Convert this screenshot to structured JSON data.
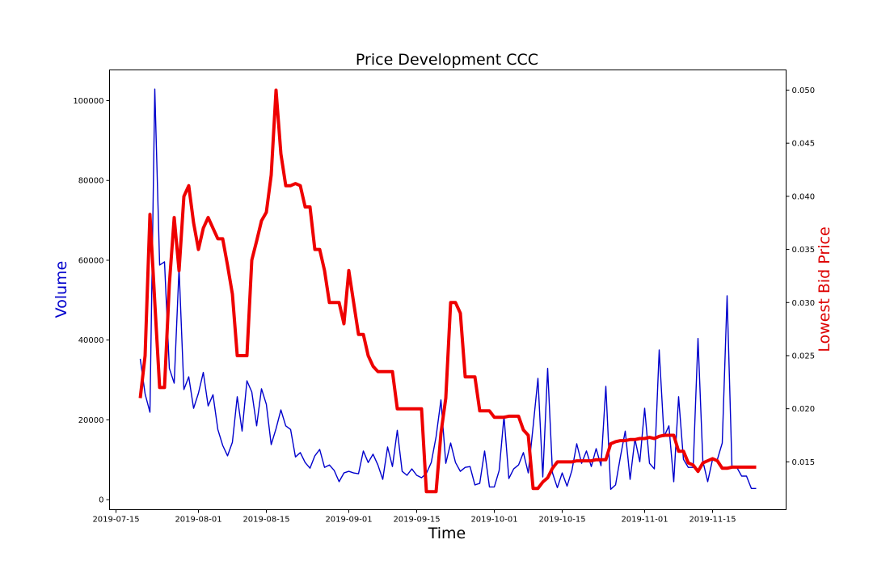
{
  "chart_data": {
    "type": "line",
    "title": "Price Development CCC",
    "xlabel": "Time",
    "ylabel_left": "Volume",
    "ylabel_right": "Lowest Bid Price",
    "x_start": "2019-07-20",
    "x_step_days": 1,
    "xlim": [
      "2019-07-13T16:00",
      "2019-11-30T04:00"
    ],
    "x_ticks": [
      "2019-07-15",
      "2019-08-01",
      "2019-08-15",
      "2019-09-01",
      "2019-09-15",
      "2019-10-01",
      "2019-10-15",
      "2019-11-01",
      "2019-11-15"
    ],
    "ylim_left": [
      -2500,
      107700
    ],
    "y_ticks_left": [
      0,
      20000,
      40000,
      60000,
      80000,
      100000
    ],
    "y_tick_labels_left": [
      "0",
      "20000",
      "40000",
      "60000",
      "80000",
      "100000"
    ],
    "ylim_right": [
      0.0105,
      0.0519
    ],
    "y_ticks_right": [
      0.015,
      0.02,
      0.025,
      0.03,
      0.035,
      0.04,
      0.045,
      0.05
    ],
    "y_tick_labels_right": [
      "0.015",
      "0.020",
      "0.025",
      "0.030",
      "0.035",
      "0.040",
      "0.045",
      "0.050"
    ],
    "grid": false,
    "series": [
      {
        "name": "Volume",
        "axis": "left",
        "color": "#0000cc",
        "values": [
          35300,
          26500,
          21900,
          102900,
          58800,
          59600,
          32900,
          29200,
          58000,
          27600,
          30800,
          22900,
          26700,
          31900,
          23500,
          26300,
          17600,
          13600,
          11000,
          14400,
          25800,
          17200,
          29800,
          27000,
          18500,
          27800,
          23900,
          13800,
          17800,
          22500,
          18500,
          17600,
          10700,
          11800,
          9300,
          7900,
          11000,
          12600,
          8100,
          8700,
          7300,
          4500,
          6700,
          7100,
          6700,
          6500,
          12200,
          9300,
          11400,
          8700,
          5100,
          13200,
          8300,
          17400,
          7100,
          6100,
          7700,
          6100,
          5500,
          6600,
          9300,
          15800,
          25000,
          9100,
          14200,
          9300,
          7100,
          8100,
          8300,
          3700,
          4100,
          12200,
          3200,
          3200,
          7300,
          20900,
          5300,
          7700,
          8700,
          11800,
          6700,
          18300,
          30400,
          5700,
          32900,
          6700,
          3000,
          6700,
          3400,
          7300,
          14000,
          9100,
          12200,
          8300,
          12800,
          8500,
          28400,
          2600,
          3700,
          10700,
          17200,
          5100,
          15200,
          9500,
          22900,
          9100,
          7700,
          37500,
          15800,
          18500,
          4500,
          25800,
          10100,
          8100,
          8100,
          40400,
          9700,
          4500,
          10100,
          10100,
          14200,
          51100,
          8300,
          8100,
          5900,
          5900,
          2800,
          2800
        ]
      },
      {
        "name": "Lowest Bid Price",
        "axis": "right",
        "color": "#ee0000",
        "values": [
          0.021,
          0.025,
          0.0383,
          0.03,
          0.022,
          0.022,
          0.0317,
          0.038,
          0.033,
          0.04,
          0.041,
          0.0375,
          0.035,
          0.037,
          0.038,
          0.037,
          0.036,
          0.036,
          0.0335,
          0.0308,
          0.025,
          0.025,
          0.025,
          0.034,
          0.0358,
          0.0377,
          0.0385,
          0.042,
          0.05,
          0.044,
          0.041,
          0.041,
          0.0412,
          0.041,
          0.039,
          0.039,
          0.035,
          0.035,
          0.033,
          0.03,
          0.03,
          0.03,
          0.028,
          0.033,
          0.03,
          0.027,
          0.027,
          0.025,
          0.024,
          0.0235,
          0.0235,
          0.0235,
          0.0235,
          0.02,
          0.02,
          0.02,
          0.02,
          0.02,
          0.02,
          0.0122,
          0.0122,
          0.0122,
          0.0177,
          0.021,
          0.03,
          0.03,
          0.029,
          0.023,
          0.023,
          0.023,
          0.0198,
          0.0198,
          0.0198,
          0.0192,
          0.0192,
          0.0192,
          0.0193,
          0.0193,
          0.0193,
          0.018,
          0.0175,
          0.0125,
          0.0125,
          0.0131,
          0.0135,
          0.0144,
          0.015,
          0.015,
          0.015,
          0.015,
          0.0151,
          0.0151,
          0.0151,
          0.0151,
          0.0152,
          0.0152,
          0.0152,
          0.0167,
          0.0169,
          0.017,
          0.017,
          0.0171,
          0.0171,
          0.0172,
          0.0172,
          0.0173,
          0.0172,
          0.0174,
          0.0175,
          0.0175,
          0.0175,
          0.016,
          0.016,
          0.0149,
          0.0147,
          0.0141,
          0.0149,
          0.0151,
          0.0153,
          0.0151,
          0.0144,
          0.0144,
          0.0145,
          0.0145,
          0.0145,
          0.0145,
          0.0145,
          0.0145
        ]
      }
    ]
  }
}
